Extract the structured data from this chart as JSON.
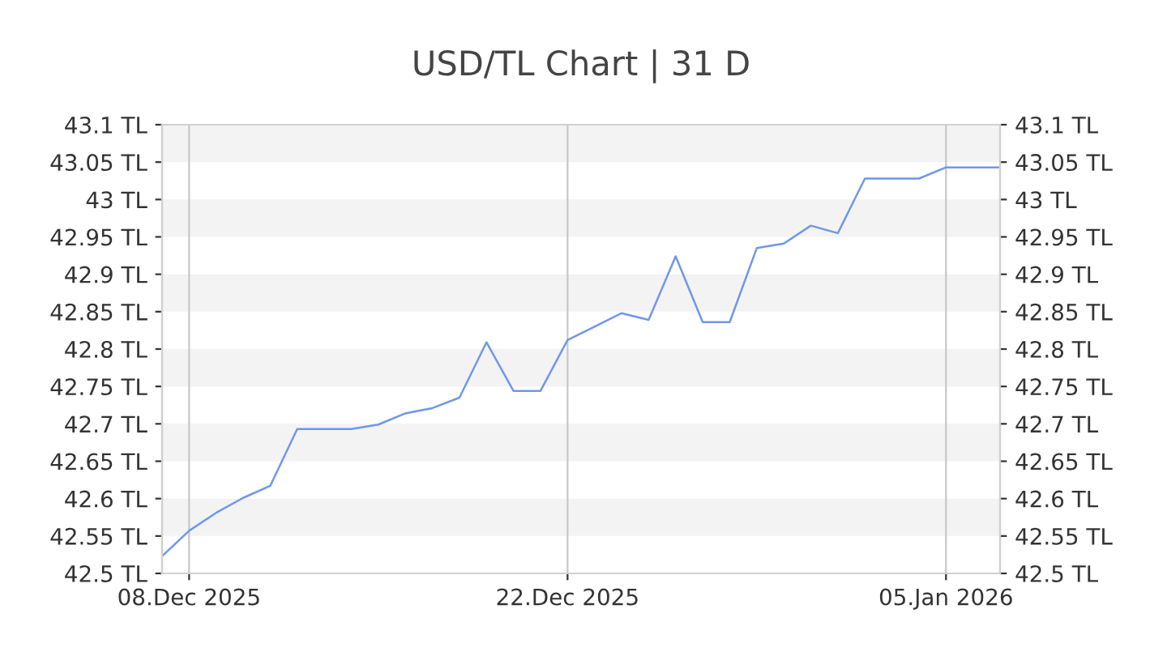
{
  "chart_data": {
    "type": "line",
    "title": "USD/TL Chart | 31 D",
    "x": [
      "2025-12-07",
      "2025-12-08",
      "2025-12-09",
      "2025-12-10",
      "2025-12-11",
      "2025-12-12",
      "2025-12-13",
      "2025-12-14",
      "2025-12-15",
      "2025-12-16",
      "2025-12-17",
      "2025-12-18",
      "2025-12-19",
      "2025-12-20",
      "2025-12-21",
      "2025-12-22",
      "2025-12-23",
      "2025-12-24",
      "2025-12-25",
      "2025-12-26",
      "2025-12-27",
      "2025-12-28",
      "2025-12-29",
      "2025-12-30",
      "2025-12-31",
      "2026-01-01",
      "2026-01-02",
      "2026-01-03",
      "2026-01-04",
      "2026-01-05",
      "2026-01-07"
    ],
    "series": [
      {
        "color": "#6f98e8",
        "values": [
          42.523,
          42.557,
          42.581,
          42.601,
          42.617,
          42.693,
          42.693,
          42.693,
          42.699,
          42.714,
          42.721,
          42.735,
          42.809,
          42.744,
          42.744,
          42.812,
          42.83,
          42.848,
          42.839,
          42.924,
          42.836,
          42.836,
          42.935,
          42.941,
          42.965,
          42.955,
          43.028,
          43.028,
          43.028,
          43.043,
          43.043
        ]
      }
    ],
    "xlim": [
      "2025-12-07",
      "2026-01-07"
    ],
    "xticks": [
      {
        "value": "2025-12-08",
        "label": "08.Dec 2025"
      },
      {
        "value": "2025-12-22",
        "label": "22.Dec 2025"
      },
      {
        "value": "2026-01-05",
        "label": "05.Jan 2026"
      }
    ],
    "ylim": [
      42.5,
      43.1
    ],
    "yticks": [
      {
        "value": 42.5,
        "label": "42.5 TL"
      },
      {
        "value": 42.55,
        "label": "42.55 TL"
      },
      {
        "value": 42.6,
        "label": "42.6 TL"
      },
      {
        "value": 42.65,
        "label": "42.65 TL"
      },
      {
        "value": 42.7,
        "label": "42.7 TL"
      },
      {
        "value": 42.75,
        "label": "42.75 TL"
      },
      {
        "value": 42.8,
        "label": "42.8 TL"
      },
      {
        "value": 42.85,
        "label": "42.85 TL"
      },
      {
        "value": 42.9,
        "label": "42.9 TL"
      },
      {
        "value": 42.95,
        "label": "42.95 TL"
      },
      {
        "value": 43.0,
        "label": "43 TL"
      },
      {
        "value": 43.05,
        "label": "43.05 TL"
      },
      {
        "value": 43.1,
        "label": "43.1 TL"
      }
    ],
    "y2lim": [
      42.5,
      43.1
    ],
    "y2ticks": [
      {
        "value": 42.5,
        "label": "42.5 TL"
      },
      {
        "value": 42.55,
        "label": "42.55 TL"
      },
      {
        "value": 42.6,
        "label": "42.6 TL"
      },
      {
        "value": 42.65,
        "label": "42.65 TL"
      },
      {
        "value": 42.7,
        "label": "42.7 TL"
      },
      {
        "value": 42.75,
        "label": "42.75 TL"
      },
      {
        "value": 42.8,
        "label": "42.8 TL"
      },
      {
        "value": 42.85,
        "label": "42.85 TL"
      },
      {
        "value": 42.9,
        "label": "42.9 TL"
      },
      {
        "value": 42.95,
        "label": "42.95 TL"
      },
      {
        "value": 43.0,
        "label": "43 TL"
      },
      {
        "value": 43.05,
        "label": "43.05 TL"
      },
      {
        "value": 43.1,
        "label": "43.1 TL"
      }
    ],
    "grid": "x",
    "marker": "none",
    "line_style": "solid"
  }
}
